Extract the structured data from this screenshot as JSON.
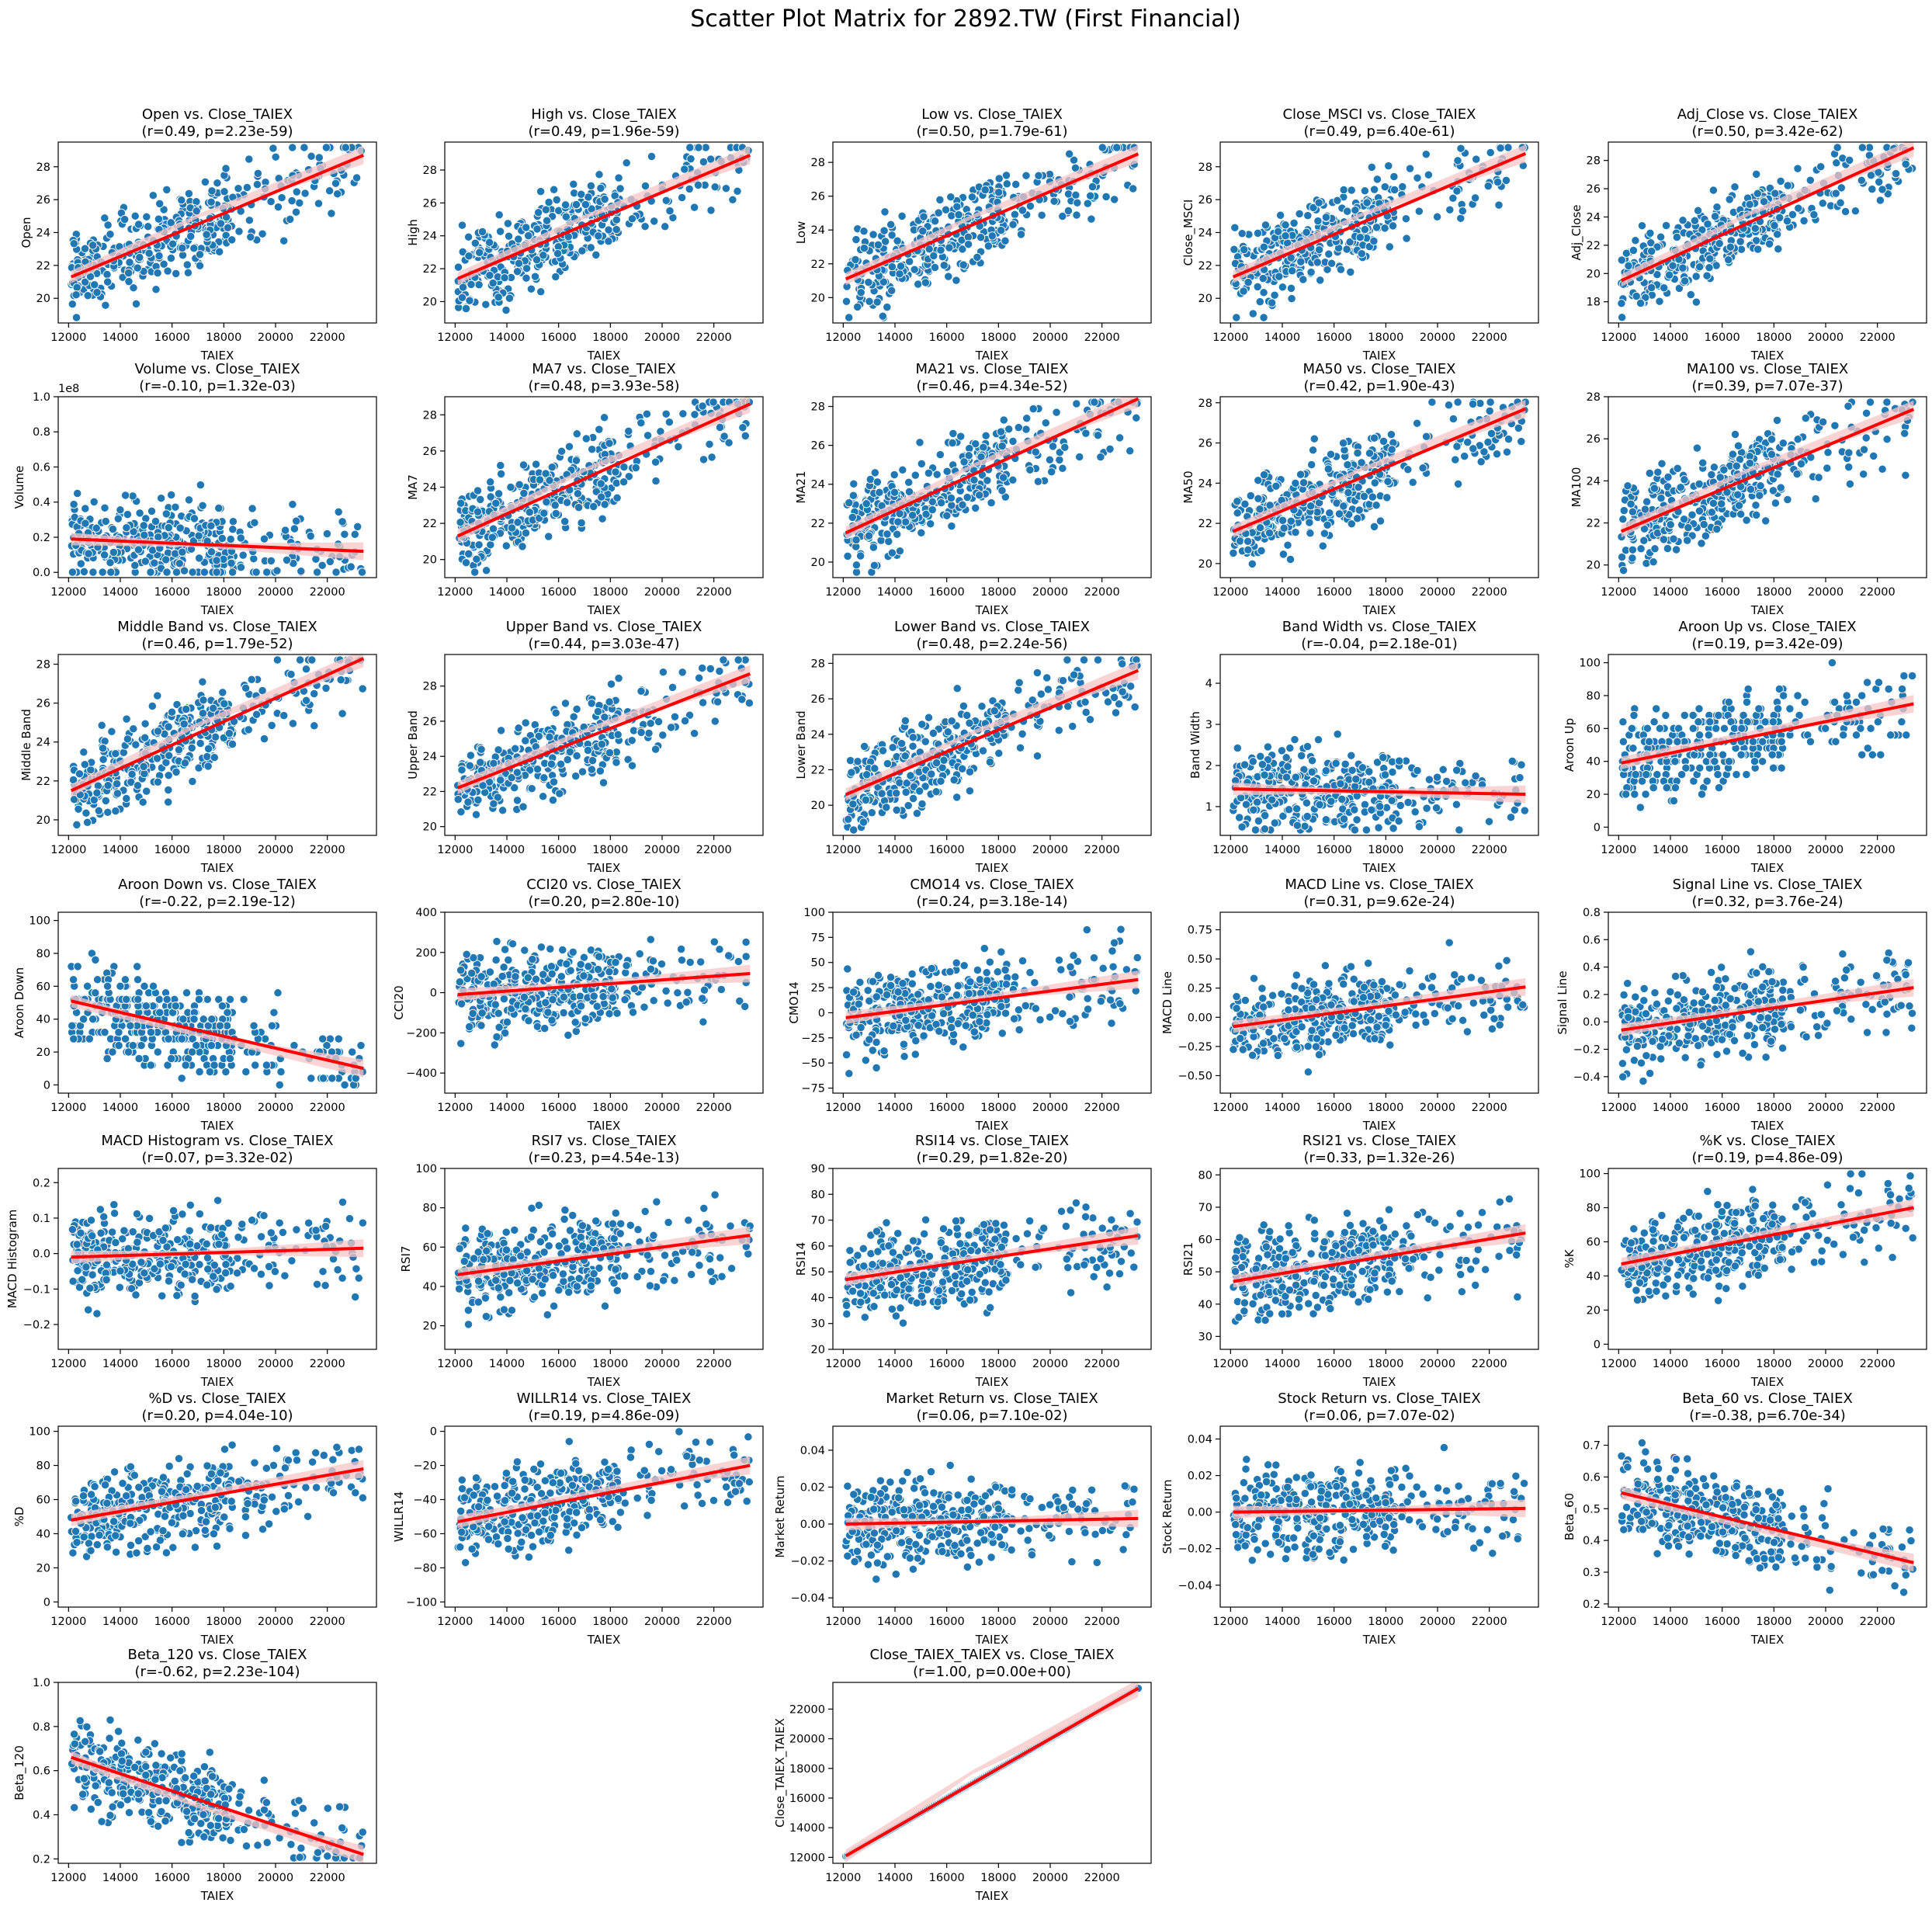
{
  "chart_data": {
    "type": "scatter",
    "title": "Scatter Plot Matrix for 2892.TW (First Financial)",
    "xlabel": "TAIEX",
    "xlim": [
      11600,
      23900
    ],
    "xticks": [
      "12000",
      "14000",
      "16000",
      "18000",
      "20000",
      "22000"
    ],
    "point_color": "#1f77b4",
    "regression_color": "#ff0000",
    "band_color": "#f7c6c6",
    "plots": [
      {
        "ylabel": "Open",
        "title": "Open vs. Close_TAIEX",
        "stats": "(r=0.49, p=2.23e-59)",
        "yticks": [
          "20",
          "22",
          "24",
          "26",
          "28"
        ],
        "ylim": [
          18.5,
          29.5
        ],
        "reg": [
          21.3,
          28.7
        ]
      },
      {
        "ylabel": "High",
        "title": "High vs. Close_TAIEX",
        "stats": "(r=0.49, p=1.96e-59)",
        "yticks": [
          "20",
          "22",
          "24",
          "26",
          "28"
        ],
        "ylim": [
          18.7,
          29.7
        ],
        "reg": [
          21.4,
          28.9
        ]
      },
      {
        "ylabel": "Low",
        "title": "Low vs. Close_TAIEX",
        "stats": "(r=0.50, p=1.79e-61)",
        "yticks": [
          "20",
          "22",
          "24",
          "26",
          "28"
        ],
        "ylim": [
          18.5,
          29.2
        ],
        "reg": [
          21.1,
          28.5
        ]
      },
      {
        "ylabel": "Close_MSCI",
        "title": "Close_MSCI vs. Close_TAIEX",
        "stats": "(r=0.49, p=6.40e-61)",
        "yticks": [
          "20",
          "22",
          "24",
          "26",
          "28"
        ],
        "ylim": [
          18.5,
          29.5
        ],
        "reg": [
          21.3,
          28.8
        ]
      },
      {
        "ylabel": "Adj_Close",
        "title": "Adj_Close vs. Close_TAIEX",
        "stats": "(r=0.50, p=3.42e-62)",
        "yticks": [
          "18",
          "20",
          "22",
          "24",
          "26",
          "28"
        ],
        "ylim": [
          16.5,
          29.3
        ],
        "reg": [
          19.5,
          28.9
        ]
      },
      {
        "ylabel": "Volume",
        "title": "Volume vs. Close_TAIEX",
        "stats": "(r=-0.10, p=1.32e-03)",
        "yticks": [
          "0.0",
          "0.2",
          "0.4",
          "0.6",
          "0.8",
          "1.0"
        ],
        "ylim": [
          -0.03,
          1.0
        ],
        "reg": [
          0.19,
          0.12
        ],
        "offset": "1e8"
      },
      {
        "ylabel": "MA7",
        "title": "MA7 vs. Close_TAIEX",
        "stats": "(r=0.48, p=3.93e-58)",
        "yticks": [
          "20",
          "22",
          "24",
          "26",
          "28"
        ],
        "ylim": [
          19,
          29
        ],
        "reg": [
          21.3,
          28.6
        ]
      },
      {
        "ylabel": "MA21",
        "title": "MA21 vs. Close_TAIEX",
        "stats": "(r=0.46, p=4.34e-52)",
        "yticks": [
          "20",
          "22",
          "24",
          "26",
          "28"
        ],
        "ylim": [
          19.2,
          28.5
        ],
        "reg": [
          21.5,
          28.4
        ]
      },
      {
        "ylabel": "MA50",
        "title": "MA50 vs. Close_TAIEX",
        "stats": "(r=0.42, p=1.90e-43)",
        "yticks": [
          "20",
          "22",
          "24",
          "26",
          "28"
        ],
        "ylim": [
          19.3,
          28.3
        ],
        "reg": [
          21.6,
          27.7
        ]
      },
      {
        "ylabel": "MA100",
        "title": "MA100 vs. Close_TAIEX",
        "stats": "(r=0.39, p=7.07e-37)",
        "yticks": [
          "20",
          "22",
          "24",
          "26",
          "28"
        ],
        "ylim": [
          19.4,
          28
        ],
        "reg": [
          21.6,
          27.4
        ]
      },
      {
        "ylabel": "Middle Band",
        "title": "Middle Band vs. Close_TAIEX",
        "stats": "(r=0.46, p=1.79e-52)",
        "yticks": [
          "20",
          "22",
          "24",
          "26",
          "28"
        ],
        "ylim": [
          19.2,
          28.5
        ],
        "reg": [
          21.5,
          28.3
        ]
      },
      {
        "ylabel": "Upper Band",
        "title": "Upper Band vs. Close_TAIEX",
        "stats": "(r=0.44, p=3.03e-47)",
        "yticks": [
          "20",
          "22",
          "24",
          "26",
          "28"
        ],
        "ylim": [
          19.5,
          29.8
        ],
        "reg": [
          22.2,
          28.7
        ]
      },
      {
        "ylabel": "Lower Band",
        "title": "Lower Band vs. Close_TAIEX",
        "stats": "(r=0.48, p=2.24e-56)",
        "yticks": [
          "20",
          "22",
          "24",
          "26",
          "28"
        ],
        "ylim": [
          18.3,
          28.5
        ],
        "reg": [
          20.6,
          27.6
        ]
      },
      {
        "ylabel": "Band Width",
        "title": "Band Width vs. Close_TAIEX",
        "stats": "(r=-0.04, p=2.18e-01)",
        "yticks": [
          "1",
          "2",
          "3",
          "4"
        ],
        "ylim": [
          0.3,
          4.7
        ],
        "reg": [
          1.43,
          1.3
        ]
      },
      {
        "ylabel": "Aroon Up",
        "title": "Aroon Up vs. Close_TAIEX",
        "stats": "(r=0.19, p=3.42e-09)",
        "yticks": [
          "0",
          "20",
          "40",
          "60",
          "80",
          "100"
        ],
        "ylim": [
          -5,
          105
        ],
        "reg": [
          39,
          75
        ]
      },
      {
        "ylabel": "Aroon Down",
        "title": "Aroon Down vs. Close_TAIEX",
        "stats": "(r=-0.22, p=2.19e-12)",
        "yticks": [
          "0",
          "20",
          "40",
          "60",
          "80",
          "100"
        ],
        "ylim": [
          -5,
          105
        ],
        "reg": [
          51,
          10
        ]
      },
      {
        "ylabel": "CCI20",
        "title": "CCI20 vs. Close_TAIEX",
        "stats": "(r=0.20, p=2.80e-10)",
        "yticks": [
          "−400",
          "−200",
          "0",
          "200",
          "400"
        ],
        "ylim": [
          -500,
          400
        ],
        "reg": [
          -10,
          95
        ]
      },
      {
        "ylabel": "CMO14",
        "title": "CMO14 vs. Close_TAIEX",
        "stats": "(r=0.24, p=3.18e-14)",
        "yticks": [
          "−75",
          "−50",
          "−25",
          "0",
          "25",
          "50",
          "75",
          "100"
        ],
        "ylim": [
          -80,
          100
        ],
        "reg": [
          -5,
          33
        ]
      },
      {
        "ylabel": "MACD Line",
        "title": "MACD Line vs. Close_TAIEX",
        "stats": "(r=0.31, p=9.62e-24)",
        "yticks": [
          "−0.50",
          "−0.25",
          "0.00",
          "0.25",
          "0.50",
          "0.75"
        ],
        "ylim": [
          -0.65,
          0.9
        ],
        "reg": [
          -0.08,
          0.26
        ]
      },
      {
        "ylabel": "Signal Line",
        "title": "Signal Line vs. Close_TAIEX",
        "stats": "(r=0.32, p=3.76e-24)",
        "yticks": [
          "−0.4",
          "−0.2",
          "0.0",
          "0.2",
          "0.4",
          "0.6",
          "0.8"
        ],
        "ylim": [
          -0.52,
          0.8
        ],
        "reg": [
          -0.06,
          0.25
        ]
      },
      {
        "ylabel": "MACD Histogram",
        "title": "MACD Histogram vs. Close_TAIEX",
        "stats": "(r=0.07, p=3.32e-02)",
        "yticks": [
          "−0.2",
          "−0.1",
          "0.0",
          "0.1",
          "0.2"
        ],
        "ylim": [
          -0.27,
          0.24
        ],
        "reg": [
          -0.01,
          0.015
        ]
      },
      {
        "ylabel": "RSI7",
        "title": "RSI7 vs. Close_TAIEX",
        "stats": "(r=0.23, p=4.54e-13)",
        "yticks": [
          "20",
          "40",
          "60",
          "80",
          "100"
        ],
        "ylim": [
          8,
          100
        ],
        "reg": [
          46,
          66
        ]
      },
      {
        "ylabel": "RSI14",
        "title": "RSI14 vs. Close_TAIEX",
        "stats": "(r=0.29, p=1.82e-20)",
        "yticks": [
          "20",
          "30",
          "40",
          "50",
          "60",
          "70",
          "80",
          "90"
        ],
        "ylim": [
          20,
          90
        ],
        "reg": [
          47,
          64
        ]
      },
      {
        "ylabel": "RSI21",
        "title": "RSI21 vs. Close_TAIEX",
        "stats": "(r=0.33, p=1.32e-26)",
        "yticks": [
          "30",
          "40",
          "50",
          "60",
          "70",
          "80"
        ],
        "ylim": [
          26,
          82
        ],
        "reg": [
          47,
          62
        ]
      },
      {
        "ylabel": "%K",
        "title": "%K vs. Close_TAIEX",
        "stats": "(r=0.19, p=4.86e-09)",
        "yticks": [
          "0",
          "20",
          "40",
          "60",
          "80",
          "100"
        ],
        "ylim": [
          -3,
          103
        ],
        "reg": [
          47,
          80
        ]
      },
      {
        "ylabel": "%D",
        "title": "%D vs. Close_TAIEX",
        "stats": "(r=0.20, p=4.04e-10)",
        "yticks": [
          "0",
          "20",
          "40",
          "60",
          "80",
          "100"
        ],
        "ylim": [
          -3,
          103
        ],
        "reg": [
          48,
          78
        ]
      },
      {
        "ylabel": "WILLR14",
        "title": "WILLR14 vs. Close_TAIEX",
        "stats": "(r=0.19, p=4.86e-09)",
        "yticks": [
          "−100",
          "−80",
          "−60",
          "−40",
          "−20",
          "0"
        ],
        "ylim": [
          -103,
          3
        ],
        "reg": [
          -53,
          -20
        ]
      },
      {
        "ylabel": "Market Return",
        "title": "Market Return vs. Close_TAIEX",
        "stats": "(r=0.06, p=7.10e-02)",
        "yticks": [
          "−0.04",
          "−0.02",
          "0.00",
          "0.02",
          "0.04"
        ],
        "ylim": [
          -0.045,
          0.053
        ],
        "reg": [
          0,
          0.003
        ]
      },
      {
        "ylabel": "Stock Return",
        "title": "Stock Return vs. Close_TAIEX",
        "stats": "(r=0.06, p=7.07e-02)",
        "yticks": [
          "−0.04",
          "−0.02",
          "0.00",
          "0.02",
          "0.04"
        ],
        "ylim": [
          -0.052,
          0.047
        ],
        "reg": [
          0,
          0.002
        ]
      },
      {
        "ylabel": "Beta_60",
        "title": "Beta_60 vs. Close_TAIEX",
        "stats": "(r=-0.38, p=6.70e-34)",
        "yticks": [
          "0.2",
          "0.3",
          "0.4",
          "0.5",
          "0.6",
          "0.7"
        ],
        "ylim": [
          0.19,
          0.76
        ],
        "reg": [
          0.55,
          0.33
        ]
      },
      {
        "ylabel": "Beta_120",
        "title": "Beta_120 vs. Close_TAIEX",
        "stats": "(r=-0.62, p=2.23e-104)",
        "yticks": [
          "0.2",
          "0.4",
          "0.6",
          "0.8",
          "1.0"
        ],
        "ylim": [
          0.18,
          1.0
        ],
        "reg": [
          0.66,
          0.22
        ]
      },
      {
        "ylabel": "Close_TAIEX_TAIEX",
        "title": "Close_TAIEX_TAIEX vs. Close_TAIEX",
        "stats": "(r=1.00, p=0.00e+00)",
        "yticks": [
          "12000",
          "14000",
          "16000",
          "18000",
          "20000",
          "22000"
        ],
        "ylim": [
          11600,
          23800
        ],
        "reg": [
          12100,
          23400
        ],
        "identity": true
      }
    ]
  }
}
